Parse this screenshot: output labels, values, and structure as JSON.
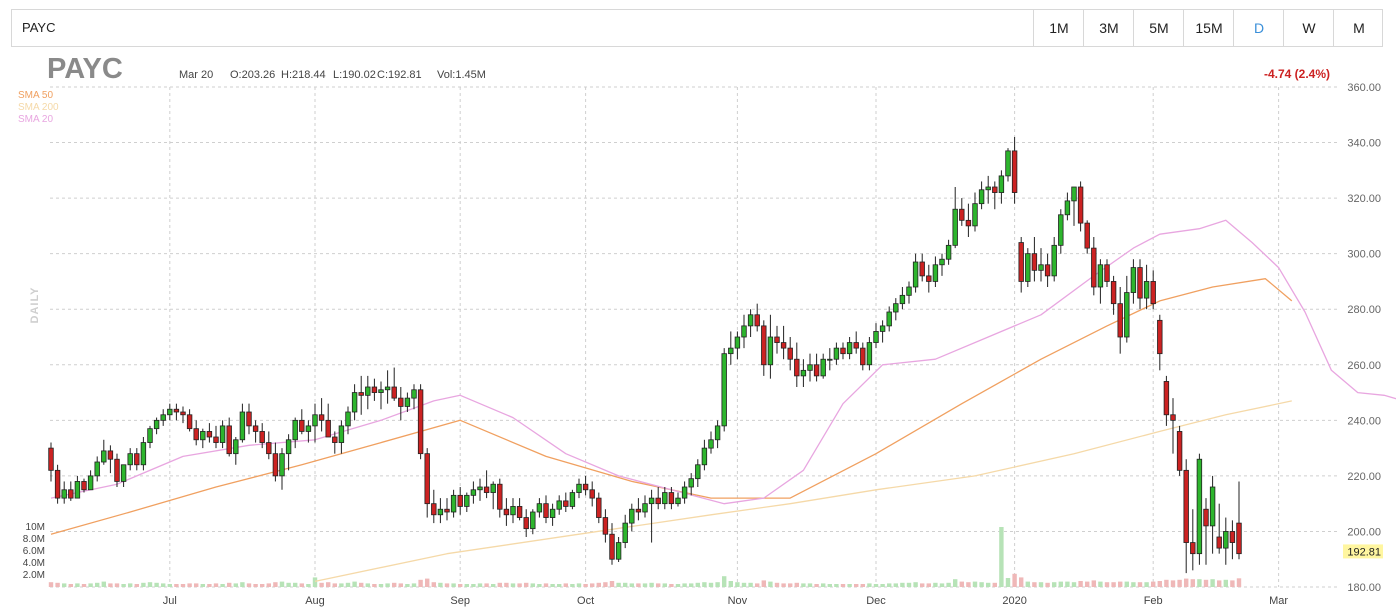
{
  "toolbar": {
    "symbol": "PAYC",
    "timeframes": [
      "1M",
      "3M",
      "5M",
      "15M",
      "D",
      "W",
      "M"
    ],
    "active_timeframe": "D"
  },
  "header": {
    "symbol": "PAYC",
    "date": "Mar 20",
    "open": "O:203.26",
    "high": "H:218.44",
    "low": "L:190.02",
    "close": "C:192.81",
    "volume": "Vol:1.45M",
    "change": "-4.74 (2.4%)",
    "period_label": "DAILY"
  },
  "colors": {
    "up": "#2db52d",
    "down": "#cc2222",
    "sma50": "#f0a060",
    "sma200": "#f5d9a8",
    "sma20": "#e8a6e0",
    "price_tag": "#fff6a0"
  },
  "chart_data": {
    "type": "candlestick",
    "symbol": "PAYC",
    "ylim": [
      180,
      360
    ],
    "yticks": [
      180,
      200,
      220,
      240,
      260,
      280,
      300,
      320,
      340,
      360
    ],
    "ytick_labels": [
      "180.00",
      "200.00",
      "220.00",
      "240.00",
      "260.00",
      "280.00",
      "300.00",
      "320.00",
      "340.00",
      "360.00"
    ],
    "volume_ticks": [
      "10M",
      "8.0M",
      "6.0M",
      "4.0M",
      "2.0M"
    ],
    "volume_max": 12,
    "x_labels": [
      {
        "label": "Jul",
        "index": 18
      },
      {
        "label": "Aug",
        "index": 40
      },
      {
        "label": "Sep",
        "index": 62
      },
      {
        "label": "Oct",
        "index": 81
      },
      {
        "label": "Nov",
        "index": 104
      },
      {
        "label": "Dec",
        "index": 125
      },
      {
        "label": "2020",
        "index": 146
      },
      {
        "label": "Feb",
        "index": 167
      },
      {
        "label": "Mar",
        "index": 186
      }
    ],
    "last_price": "192.81",
    "last_value": 192.81,
    "ohlc": [
      [
        230,
        232,
        218,
        222
      ],
      [
        222,
        224,
        210,
        212
      ],
      [
        212,
        218,
        210,
        215
      ],
      [
        215,
        218,
        211,
        212
      ],
      [
        212,
        220,
        212,
        218
      ],
      [
        218,
        219,
        214,
        215
      ],
      [
        215,
        222,
        215,
        220
      ],
      [
        220,
        227,
        218,
        225
      ],
      [
        225,
        233,
        224,
        229
      ],
      [
        229,
        231,
        221,
        226
      ],
      [
        226,
        228,
        216,
        218
      ],
      [
        218,
        224,
        216,
        224
      ],
      [
        224,
        230,
        222,
        228
      ],
      [
        228,
        230,
        222,
        224
      ],
      [
        224,
        234,
        222,
        232
      ],
      [
        232,
        238,
        230,
        237
      ],
      [
        237,
        241,
        235,
        240
      ],
      [
        240,
        244,
        238,
        242
      ],
      [
        242,
        246,
        240,
        244
      ],
      [
        244,
        246,
        240,
        243
      ],
      [
        243,
        245,
        239,
        242
      ],
      [
        242,
        244,
        236,
        237
      ],
      [
        237,
        240,
        231,
        233
      ],
      [
        233,
        237,
        230,
        236
      ],
      [
        236,
        239,
        232,
        234
      ],
      [
        234,
        238,
        230,
        232
      ],
      [
        232,
        240,
        230,
        238
      ],
      [
        238,
        241,
        227,
        228
      ],
      [
        228,
        234,
        224,
        233
      ],
      [
        233,
        246,
        232,
        243
      ],
      [
        243,
        246,
        235,
        238
      ],
      [
        238,
        240,
        232,
        236
      ],
      [
        236,
        239,
        230,
        232
      ],
      [
        232,
        236,
        226,
        228
      ],
      [
        228,
        232,
        218,
        220
      ],
      [
        220,
        230,
        215,
        228
      ],
      [
        228,
        235,
        222,
        233
      ],
      [
        233,
        241,
        230,
        240
      ],
      [
        240,
        244,
        235,
        236
      ],
      [
        236,
        240,
        232,
        238
      ],
      [
        238,
        246,
        232,
        242
      ],
      [
        242,
        248,
        236,
        240
      ],
      [
        240,
        246,
        234,
        234
      ],
      [
        234,
        236,
        228,
        232
      ],
      [
        232,
        240,
        228,
        238
      ],
      [
        238,
        245,
        235,
        243
      ],
      [
        243,
        253,
        240,
        250
      ],
      [
        250,
        256,
        242,
        249
      ],
      [
        249,
        256,
        244,
        252
      ],
      [
        252,
        255,
        247,
        250
      ],
      [
        250,
        254,
        244,
        251
      ],
      [
        251,
        258,
        246,
        252
      ],
      [
        252,
        259,
        247,
        248
      ],
      [
        248,
        252,
        240,
        245
      ],
      [
        245,
        250,
        243,
        248
      ],
      [
        248,
        253,
        244,
        251
      ],
      [
        251,
        253,
        226,
        228
      ],
      [
        228,
        230,
        205,
        210
      ],
      [
        210,
        215,
        203,
        206
      ],
      [
        206,
        212,
        203,
        208
      ],
      [
        208,
        212,
        204,
        207
      ],
      [
        207,
        215,
        205,
        213
      ],
      [
        213,
        216,
        206,
        209
      ],
      [
        209,
        214,
        207,
        213
      ],
      [
        213,
        218,
        210,
        215
      ],
      [
        215,
        219,
        211,
        216
      ],
      [
        216,
        222,
        212,
        214
      ],
      [
        214,
        218,
        208,
        217
      ],
      [
        217,
        219,
        205,
        208
      ],
      [
        208,
        212,
        202,
        206
      ],
      [
        206,
        212,
        203,
        209
      ],
      [
        209,
        212,
        204,
        205
      ],
      [
        205,
        208,
        198,
        201
      ],
      [
        201,
        208,
        199,
        207
      ],
      [
        207,
        212,
        205,
        210
      ],
      [
        210,
        213,
        203,
        205
      ],
      [
        205,
        210,
        202,
        208
      ],
      [
        208,
        213,
        206,
        211
      ],
      [
        211,
        214,
        207,
        209
      ],
      [
        209,
        215,
        208,
        214
      ],
      [
        214,
        219,
        212,
        217
      ],
      [
        217,
        220,
        213,
        215
      ],
      [
        215,
        218,
        209,
        212
      ],
      [
        212,
        214,
        203,
        205
      ],
      [
        205,
        208,
        196,
        199
      ],
      [
        199,
        203,
        188,
        190
      ],
      [
        190,
        198,
        189,
        196
      ],
      [
        196,
        206,
        194,
        203
      ],
      [
        203,
        210,
        200,
        208
      ],
      [
        208,
        212,
        204,
        207
      ],
      [
        207,
        213,
        205,
        210
      ],
      [
        210,
        215,
        196,
        212
      ],
      [
        212,
        216,
        208,
        210
      ],
      [
        210,
        216,
        208,
        214
      ],
      [
        214,
        216,
        208,
        210
      ],
      [
        210,
        214,
        209,
        212
      ],
      [
        212,
        218,
        210,
        216
      ],
      [
        216,
        221,
        213,
        219
      ],
      [
        219,
        226,
        216,
        224
      ],
      [
        224,
        233,
        222,
        230
      ],
      [
        230,
        236,
        228,
        233
      ],
      [
        233,
        240,
        230,
        238
      ],
      [
        238,
        266,
        236,
        264
      ],
      [
        264,
        272,
        260,
        266
      ],
      [
        266,
        272,
        262,
        270
      ],
      [
        270,
        278,
        266,
        274
      ],
      [
        274,
        280,
        270,
        278
      ],
      [
        278,
        282,
        272,
        274
      ],
      [
        274,
        276,
        256,
        260
      ],
      [
        260,
        278,
        255,
        270
      ],
      [
        270,
        274,
        264,
        268
      ],
      [
        268,
        274,
        262,
        266
      ],
      [
        266,
        270,
        258,
        262
      ],
      [
        262,
        268,
        252,
        256
      ],
      [
        256,
        262,
        252,
        258
      ],
      [
        258,
        264,
        254,
        260
      ],
      [
        260,
        264,
        254,
        256
      ],
      [
        256,
        264,
        255,
        262
      ],
      [
        262,
        266,
        258,
        262
      ],
      [
        262,
        268,
        260,
        266
      ],
      [
        266,
        268,
        262,
        264
      ],
      [
        264,
        270,
        262,
        268
      ],
      [
        268,
        272,
        264,
        266
      ],
      [
        266,
        268,
        258,
        260
      ],
      [
        260,
        270,
        258,
        268
      ],
      [
        268,
        275,
        266,
        272
      ],
      [
        272,
        276,
        268,
        274
      ],
      [
        274,
        281,
        272,
        279
      ],
      [
        279,
        284,
        276,
        282
      ],
      [
        282,
        288,
        280,
        285
      ],
      [
        285,
        290,
        282,
        288
      ],
      [
        288,
        300,
        286,
        297
      ],
      [
        297,
        300,
        290,
        292
      ],
      [
        292,
        296,
        286,
        290
      ],
      [
        290,
        299,
        288,
        296
      ],
      [
        296,
        300,
        292,
        298
      ],
      [
        298,
        305,
        296,
        303
      ],
      [
        303,
        324,
        302,
        316
      ],
      [
        316,
        320,
        310,
        312
      ],
      [
        312,
        318,
        306,
        310
      ],
      [
        310,
        322,
        308,
        318
      ],
      [
        318,
        326,
        316,
        323
      ],
      [
        323,
        328,
        318,
        324
      ],
      [
        324,
        326,
        316,
        322
      ],
      [
        322,
        330,
        318,
        328
      ],
      [
        328,
        338,
        326,
        337
      ],
      [
        337,
        342,
        318,
        322
      ],
      [
        304,
        306,
        286,
        290
      ],
      [
        290,
        302,
        288,
        300
      ],
      [
        300,
        306,
        290,
        294
      ],
      [
        294,
        302,
        290,
        296
      ],
      [
        296,
        300,
        288,
        292
      ],
      [
        292,
        306,
        290,
        303
      ],
      [
        303,
        316,
        300,
        314
      ],
      [
        314,
        322,
        312,
        319
      ],
      [
        319,
        324,
        310,
        324
      ],
      [
        324,
        326,
        308,
        311
      ],
      [
        311,
        312,
        300,
        302
      ],
      [
        302,
        306,
        285,
        288
      ],
      [
        288,
        298,
        282,
        296
      ],
      [
        296,
        298,
        288,
        290
      ],
      [
        290,
        292,
        278,
        282
      ],
      [
        282,
        288,
        264,
        270
      ],
      [
        270,
        292,
        268,
        286
      ],
      [
        286,
        298,
        282,
        295
      ],
      [
        295,
        298,
        280,
        284
      ],
      [
        284,
        296,
        280,
        290
      ],
      [
        290,
        294,
        280,
        282
      ],
      [
        276,
        278,
        258,
        264
      ],
      [
        254,
        256,
        238,
        242
      ],
      [
        242,
        248,
        228,
        240
      ],
      [
        236,
        238,
        220,
        222
      ],
      [
        222,
        226,
        185,
        196
      ],
      [
        196,
        208,
        186,
        192
      ],
      [
        192,
        228,
        188,
        226
      ],
      [
        208,
        212,
        188,
        202
      ],
      [
        202,
        220,
        192,
        216
      ],
      [
        198,
        210,
        192,
        194
      ],
      [
        194,
        205,
        188,
        200
      ],
      [
        200,
        204,
        190,
        196
      ],
      [
        203,
        218,
        190,
        192
      ]
    ],
    "volume": [
      0.8,
      0.7,
      0.6,
      0.5,
      0.6,
      0.5,
      0.6,
      0.7,
      0.9,
      0.6,
      0.6,
      0.5,
      0.6,
      0.5,
      0.7,
      0.8,
      0.7,
      0.6,
      0.5,
      0.5,
      0.5,
      0.6,
      0.6,
      0.5,
      0.5,
      0.6,
      0.5,
      0.7,
      0.6,
      0.8,
      0.6,
      0.5,
      0.5,
      0.6,
      0.8,
      0.9,
      0.7,
      0.7,
      0.6,
      0.5,
      1.6,
      0.7,
      0.8,
      0.6,
      0.6,
      0.7,
      0.9,
      0.7,
      0.6,
      0.5,
      0.5,
      0.6,
      0.7,
      0.6,
      0.5,
      0.6,
      1.2,
      1.4,
      0.8,
      0.7,
      0.6,
      0.6,
      0.5,
      0.5,
      0.5,
      0.6,
      0.6,
      0.5,
      0.7,
      0.7,
      0.6,
      0.6,
      0.7,
      0.6,
      0.5,
      0.6,
      0.5,
      0.5,
      0.6,
      0.5,
      0.6,
      0.5,
      0.6,
      0.7,
      0.8,
      1.0,
      0.7,
      0.7,
      0.6,
      0.6,
      0.6,
      0.7,
      0.6,
      0.6,
      0.5,
      0.5,
      0.6,
      0.6,
      0.7,
      0.8,
      0.7,
      0.8,
      1.8,
      1.0,
      0.8,
      0.7,
      0.7,
      0.6,
      1.1,
      0.9,
      0.7,
      0.6,
      0.6,
      0.7,
      0.6,
      0.6,
      0.5,
      0.6,
      0.5,
      0.5,
      0.5,
      0.5,
      0.5,
      0.5,
      0.6,
      0.5,
      0.5,
      0.6,
      0.6,
      0.7,
      0.7,
      0.8,
      0.6,
      0.6,
      0.7,
      0.6,
      0.7,
      1.3,
      0.9,
      0.8,
      0.9,
      0.8,
      0.7,
      0.7,
      10.0,
      1.5,
      2.2,
      1.6,
      0.9,
      0.8,
      0.8,
      0.7,
      0.8,
      0.9,
      0.9,
      0.8,
      1.0,
      0.9,
      1.1,
      0.9,
      0.8,
      0.8,
      0.9,
      0.9,
      0.8,
      0.8,
      0.8,
      0.9,
      1.0,
      1.2,
      1.1,
      1.2,
      1.4,
      1.3,
      1.3,
      1.2,
      1.3,
      1.1,
      1.2,
      1.1,
      1.45
    ],
    "series": [
      {
        "name": "SMA 50",
        "x": [
          0,
          12,
          25,
          38,
          50,
          62,
          75,
          88,
          100,
          112,
          125,
          138,
          150,
          160,
          168,
          176,
          184,
          188
        ],
        "values": [
          199,
          207,
          216,
          224,
          232,
          240,
          227,
          218,
          212,
          212,
          228,
          246,
          262,
          274,
          283,
          288,
          291,
          283
        ]
      },
      {
        "name": "SMA 200",
        "x": [
          40,
          60,
          80,
          100,
          112,
          125,
          140,
          155,
          168,
          178,
          188
        ],
        "values": [
          182,
          192,
          199,
          206,
          210,
          215,
          220,
          228,
          236,
          242,
          247
        ]
      },
      {
        "name": "SMA 20",
        "x": [
          0,
          10,
          20,
          30,
          40,
          50,
          58,
          62,
          70,
          78,
          86,
          94,
          102,
          108,
          114,
          120,
          126,
          134,
          142,
          150,
          158,
          164,
          168,
          174,
          178,
          182,
          186,
          190,
          194,
          198,
          202,
          205
        ],
        "values": [
          212,
          217,
          227,
          231,
          233,
          240,
          247,
          249,
          241,
          228,
          220,
          215,
          210,
          212,
          222,
          246,
          260,
          262,
          270,
          278,
          292,
          302,
          307,
          309,
          312,
          304,
          295,
          279,
          258,
          250,
          249,
          247
        ]
      }
    ]
  }
}
